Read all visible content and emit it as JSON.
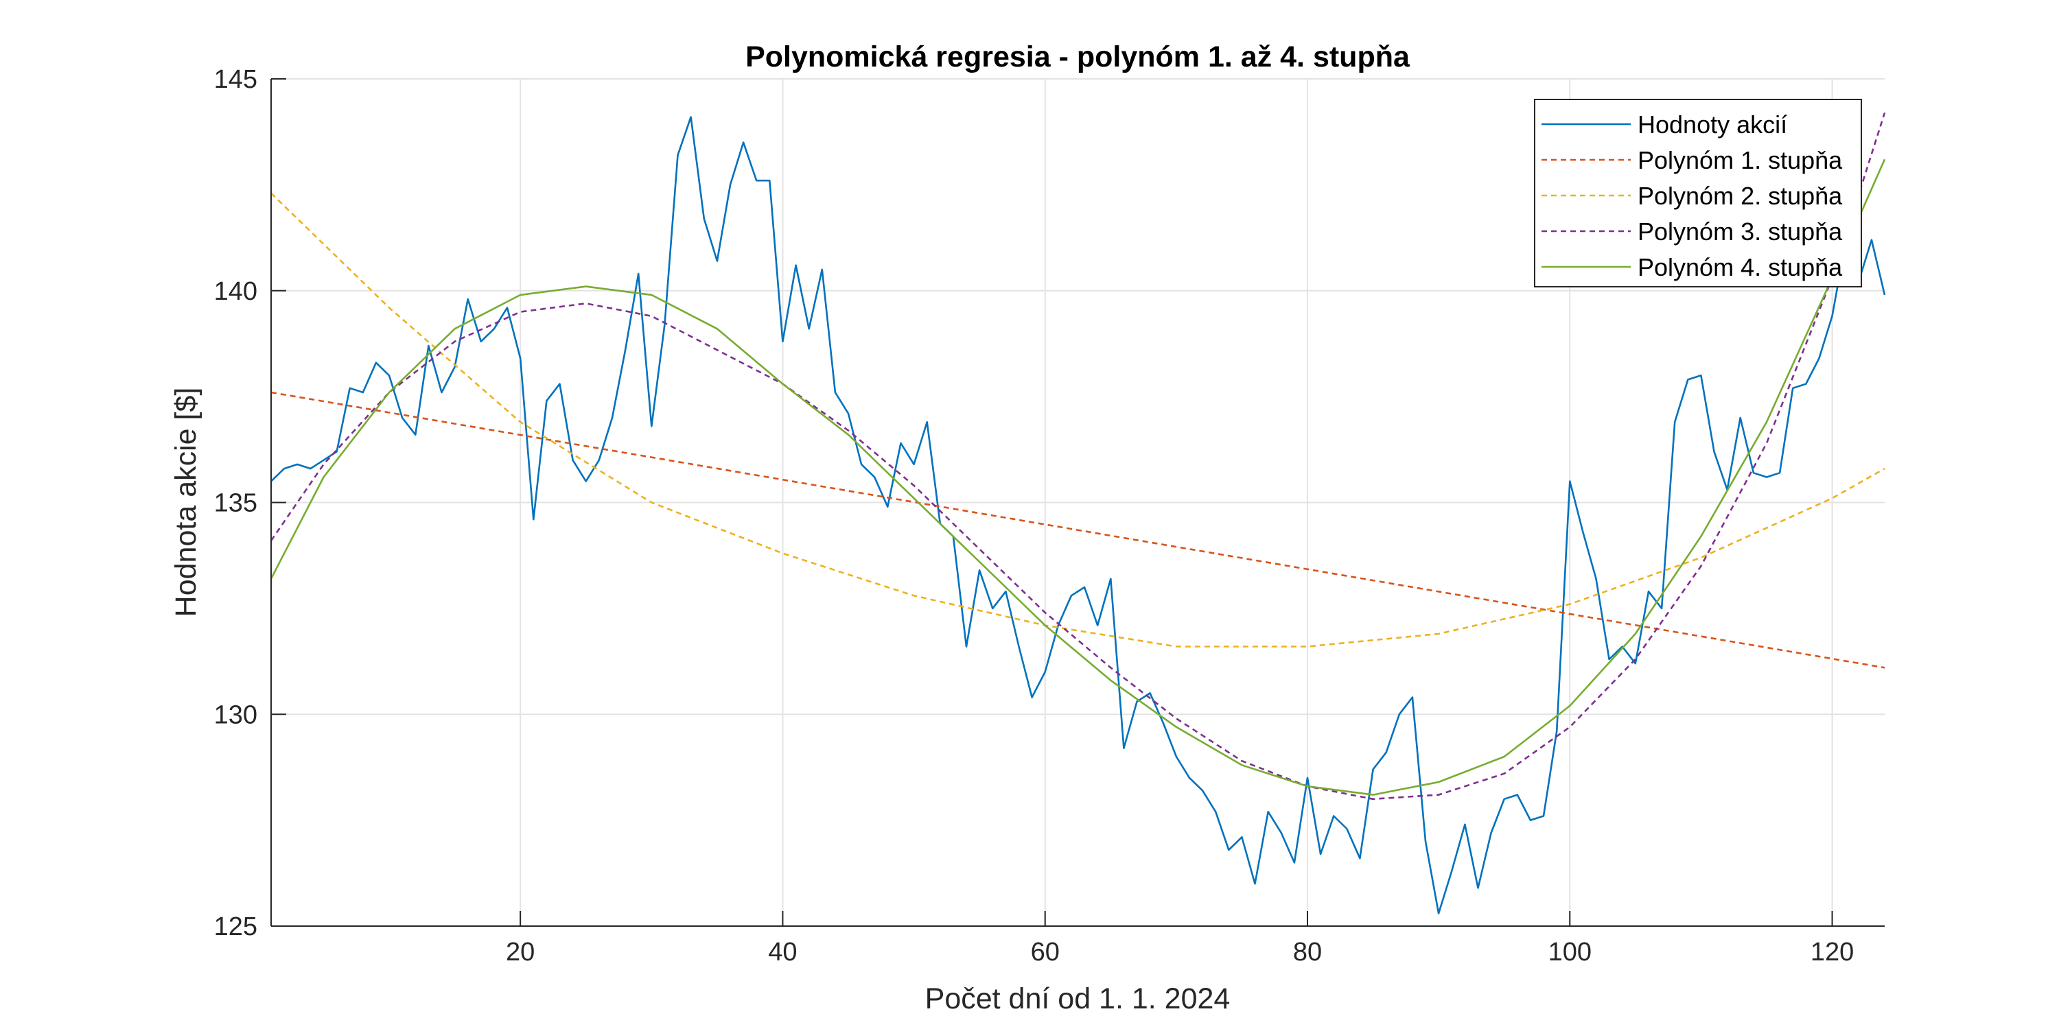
{
  "chart_data": {
    "type": "line",
    "title": "Polynomická regresia - polynóm 1. až 4. stupňa",
    "xlabel": "Počet dní od 1. 1. 2024",
    "ylabel": "Hodnota akcie [$]",
    "xlim": [
      1,
      124
    ],
    "ylim": [
      125,
      145
    ],
    "xticks": [
      20,
      40,
      60,
      80,
      100,
      120
    ],
    "yticks": [
      125,
      130,
      135,
      140,
      145
    ],
    "grid": true,
    "legend_position": "top-right",
    "series": [
      {
        "name": "Hodnoty akcií",
        "style": "solid",
        "color": "#0072BD",
        "x": [
          1,
          2,
          3,
          4,
          5,
          6,
          7,
          8,
          9,
          10,
          11,
          12,
          13,
          14,
          15,
          16,
          17,
          18,
          19,
          20,
          21,
          22,
          23,
          24,
          25,
          26,
          27,
          28,
          29,
          30,
          31,
          32,
          33,
          34,
          35,
          36,
          37,
          38,
          39,
          40,
          41,
          42,
          43,
          44,
          45,
          46,
          47,
          48,
          49,
          50,
          51,
          52,
          53,
          54,
          55,
          56,
          57,
          58,
          59,
          60,
          61,
          62,
          63,
          64,
          65,
          66,
          67,
          68,
          69,
          70,
          71,
          72,
          73,
          74,
          75,
          76,
          77,
          78,
          79,
          80,
          81,
          82,
          83,
          84,
          85,
          86,
          87,
          88,
          89,
          90,
          91,
          92,
          93,
          94,
          95,
          96,
          97,
          98,
          99,
          100,
          101,
          102,
          103,
          104,
          105,
          106,
          107,
          108,
          109,
          110,
          111,
          112,
          113,
          114,
          115,
          116,
          117,
          118,
          119,
          120,
          121,
          122,
          123,
          124
        ],
        "y": [
          135.5,
          135.8,
          135.9,
          135.8,
          136.0,
          136.2,
          137.7,
          137.6,
          138.3,
          138.0,
          137.0,
          136.6,
          138.7,
          137.6,
          138.2,
          139.8,
          138.8,
          139.1,
          139.6,
          138.4,
          134.6,
          137.4,
          137.8,
          136.0,
          135.5,
          136.0,
          137.0,
          138.6,
          140.4,
          136.8,
          139.2,
          143.2,
          144.1,
          141.7,
          140.7,
          142.5,
          143.5,
          142.6,
          142.6,
          138.8,
          140.6,
          139.1,
          140.5,
          137.6,
          137.1,
          135.9,
          135.6,
          134.9,
          136.4,
          135.9,
          136.9,
          134.5,
          134.2,
          131.6,
          133.4,
          132.5,
          132.9,
          131.6,
          130.4,
          131.0,
          132.1,
          132.8,
          133.0,
          132.1,
          133.2,
          129.2,
          130.3,
          130.5,
          129.8,
          129.0,
          128.5,
          128.2,
          127.7,
          126.8,
          127.1,
          126.0,
          127.7,
          127.2,
          126.5,
          128.5,
          126.7,
          127.6,
          127.3,
          126.6,
          128.7,
          129.1,
          130.0,
          130.4,
          127.0,
          125.3,
          126.3,
          127.4,
          125.9,
          127.2,
          128.0,
          128.1,
          127.5,
          127.6,
          129.6,
          135.5,
          134.3,
          133.2,
          131.3,
          131.6,
          131.2,
          132.9,
          132.5,
          136.9,
          137.9,
          138.0,
          136.2,
          135.3,
          137.0,
          135.7,
          135.6,
          135.7,
          137.7,
          137.8,
          138.4,
          139.4,
          141.1,
          140.2,
          141.2,
          139.9
        ]
      },
      {
        "name": "Polynóm 1. stupňa",
        "style": "dashed",
        "color": "#D95319",
        "x": [
          1,
          124
        ],
        "y": [
          137.6,
          131.1
        ]
      },
      {
        "name": "Polynóm 2. stupňa",
        "style": "dashed",
        "color": "#EDB120",
        "x": [
          1,
          10,
          20,
          30,
          40,
          50,
          60,
          70,
          80,
          90,
          100,
          110,
          120,
          124
        ],
        "y": [
          142.3,
          139.6,
          136.9,
          135.0,
          133.8,
          132.8,
          132.1,
          131.6,
          131.6,
          131.9,
          132.6,
          133.7,
          135.1,
          135.8
        ]
      },
      {
        "name": "Polynóm 3. stupňa",
        "style": "dashed",
        "color": "#7E2F8E",
        "x": [
          1,
          5,
          10,
          15,
          20,
          25,
          30,
          35,
          40,
          45,
          50,
          55,
          60,
          65,
          70,
          75,
          80,
          85,
          90,
          95,
          100,
          105,
          110,
          115,
          120,
          124
        ],
        "y": [
          134.1,
          135.9,
          137.6,
          138.8,
          139.5,
          139.7,
          139.4,
          138.6,
          137.8,
          136.7,
          135.4,
          133.9,
          132.4,
          131.1,
          129.9,
          128.9,
          128.3,
          128.0,
          128.1,
          128.6,
          129.7,
          131.3,
          133.5,
          136.4,
          140.3,
          144.2
        ]
      },
      {
        "name": "Polynóm 4. stupňa",
        "style": "solid",
        "color": "#77AC30",
        "x": [
          1,
          5,
          10,
          15,
          20,
          25,
          30,
          35,
          40,
          45,
          50,
          55,
          60,
          65,
          70,
          75,
          80,
          85,
          90,
          95,
          100,
          105,
          110,
          115,
          120,
          124
        ],
        "y": [
          133.2,
          135.6,
          137.6,
          139.1,
          139.9,
          140.1,
          139.9,
          139.1,
          137.8,
          136.6,
          135.1,
          133.6,
          132.1,
          130.8,
          129.7,
          128.8,
          128.3,
          128.1,
          128.4,
          129.0,
          130.2,
          131.9,
          134.2,
          136.9,
          140.3,
          143.1
        ]
      }
    ]
  }
}
